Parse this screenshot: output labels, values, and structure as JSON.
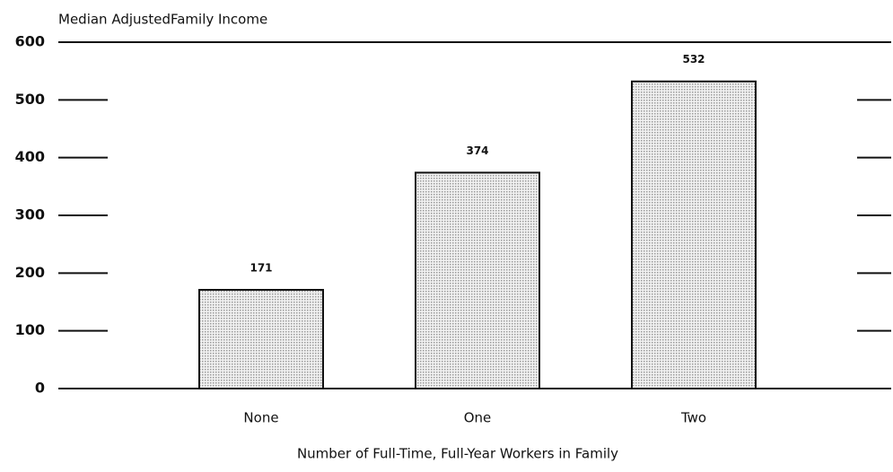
{
  "chart_data": {
    "type": "bar",
    "y_label": "Median AdjustedFamily Income",
    "x_label": "Number of Full-Time, Full-Year Workers in Family",
    "categories": [
      "None",
      "One",
      "Two"
    ],
    "values": [
      171,
      374,
      532
    ],
    "color": "#9a9a9a",
    "ylim": [
      0,
      600
    ],
    "yticks": [
      0,
      100,
      200,
      300,
      400,
      500,
      600
    ]
  }
}
